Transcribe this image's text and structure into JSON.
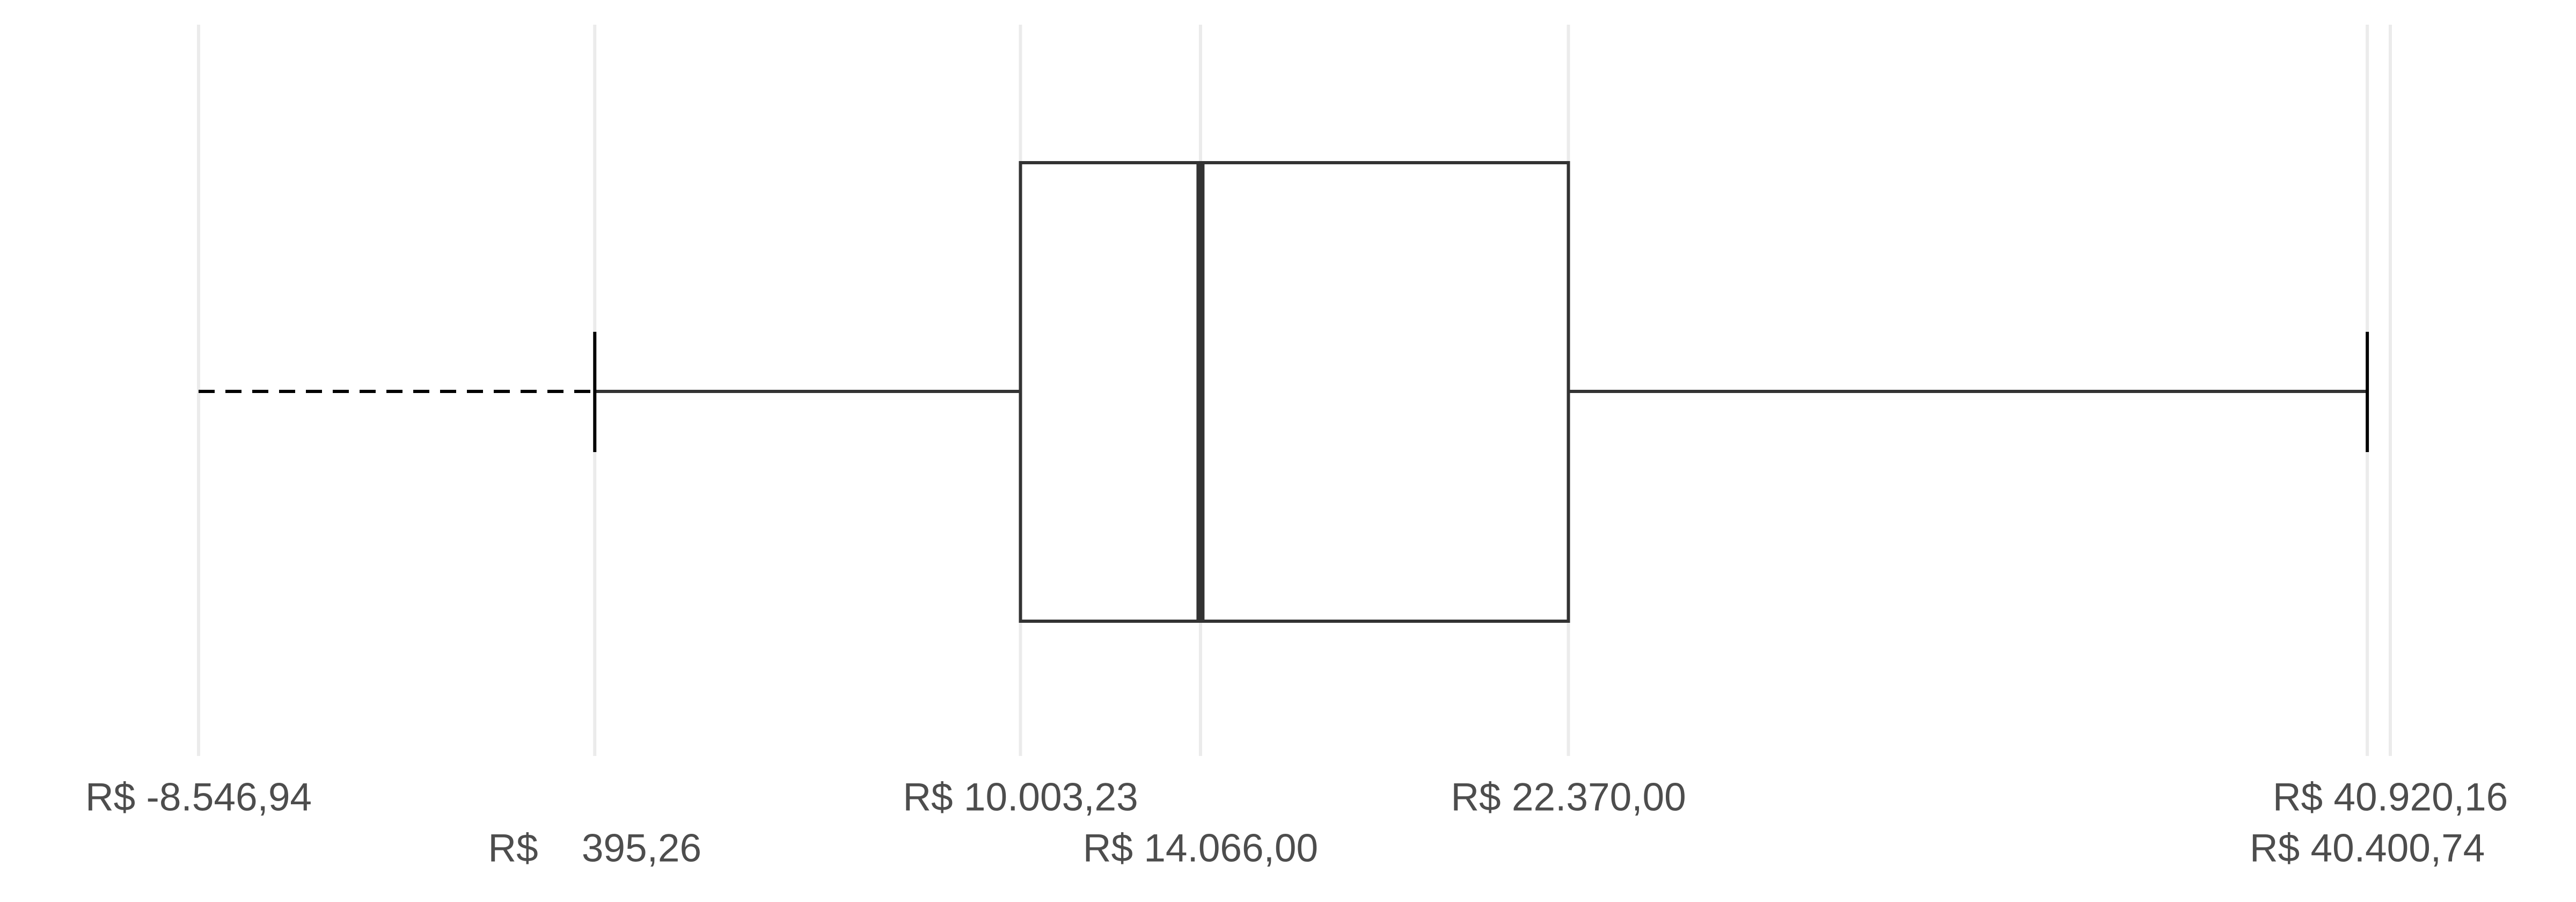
{
  "chart_data": {
    "type": "box",
    "xlim": [
      -8546.94,
      40920.16
    ],
    "xticks": [
      {
        "value": -8546.94,
        "label": "R$ -8.546,94"
      },
      {
        "value": 395.26,
        "label": "R$    395,26"
      },
      {
        "value": 10003.23,
        "label": "R$ 10.003,23"
      },
      {
        "value": 14066.0,
        "label": "R$ 14.066,00"
      },
      {
        "value": 22370.0,
        "label": "R$ 22.370,00"
      },
      {
        "value": 40400.74,
        "label": "R$ 40.400,74"
      },
      {
        "value": 40920.16,
        "label": "R$ 40.920,16"
      }
    ],
    "grid": true,
    "color": "#333333",
    "box": {
      "lower_fence": -8546.94,
      "whisker_low": 395.26,
      "q1": 10003.23,
      "median": 14066.0,
      "q3": 22370.0,
      "whisker_high": 40400.74,
      "upper_fence": 40920.16
    }
  }
}
